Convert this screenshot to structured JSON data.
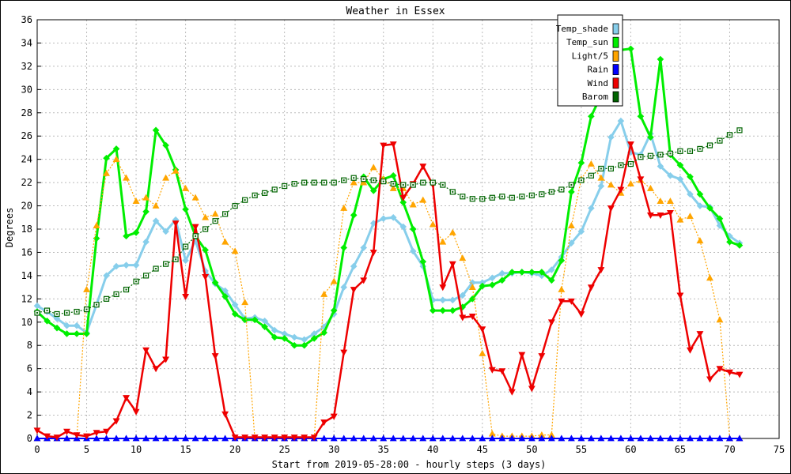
{
  "chart_data": {
    "type": "line",
    "title": "Weather in Essex",
    "xlabel": "Start from 2019-05-28:00 - hourly steps (3 days)",
    "ylabel": "Degrees",
    "xlim": [
      0,
      75
    ],
    "ylim": [
      0,
      36
    ],
    "xticks": [
      0,
      5,
      10,
      15,
      20,
      25,
      30,
      35,
      40,
      45,
      50,
      55,
      60,
      65,
      70,
      75
    ],
    "yticks": [
      0,
      2,
      4,
      6,
      8,
      10,
      12,
      14,
      16,
      18,
      20,
      22,
      24,
      26,
      28,
      30,
      32,
      34,
      36
    ],
    "grid": true,
    "legend_position": "top-right",
    "x": [
      0,
      1,
      2,
      3,
      4,
      5,
      6,
      7,
      8,
      9,
      10,
      11,
      12,
      13,
      14,
      15,
      16,
      17,
      18,
      19,
      20,
      21,
      22,
      23,
      24,
      25,
      26,
      27,
      28,
      29,
      30,
      31,
      32,
      33,
      34,
      35,
      36,
      37,
      38,
      39,
      40,
      41,
      42,
      43,
      44,
      45,
      46,
      47,
      48,
      49,
      50,
      51,
      52,
      53,
      54,
      55,
      56,
      57,
      58,
      59,
      60,
      61,
      62,
      63,
      64,
      65,
      66,
      67,
      68,
      69,
      70,
      71
    ],
    "series": [
      {
        "name": "Temp_shade",
        "color": "#87ceeb",
        "marker": "diamond",
        "values": [
          11.4,
          10.9,
          10.3,
          9.7,
          9.7,
          9.1,
          11.5,
          14.0,
          14.8,
          14.9,
          14.9,
          16.9,
          18.7,
          17.8,
          18.8,
          15.3,
          17.0,
          14.4,
          13.3,
          12.7,
          11.5,
          10.3,
          10.4,
          10.1,
          9.3,
          9.0,
          8.7,
          8.5,
          9.0,
          9.6,
          10.7,
          13.0,
          14.8,
          16.4,
          18.5,
          18.9,
          19.0,
          18.2,
          16.1,
          14.8,
          11.9,
          11.9,
          11.9,
          12.3,
          13.4,
          13.4,
          13.8,
          14.2,
          14.2,
          14.3,
          14.2,
          14.0,
          14.5,
          15.6,
          16.8,
          17.8,
          19.8,
          21.7,
          25.9,
          27.3,
          24.6,
          24.4,
          26.2,
          23.4,
          22.6,
          22.3,
          21.0,
          20.0,
          19.9,
          18.3,
          17.4,
          16.8
        ]
      },
      {
        "name": "Temp_sun",
        "color": "#00ee00",
        "marker": "diamond",
        "values": [
          10.9,
          10.1,
          9.5,
          9.0,
          9.0,
          9.0,
          17.2,
          24.1,
          24.9,
          17.4,
          17.7,
          19.5,
          26.5,
          25.2,
          23.1,
          19.7,
          17.4,
          16.2,
          13.4,
          12.2,
          10.7,
          10.2,
          10.2,
          9.6,
          8.7,
          8.6,
          8.0,
          8.0,
          8.6,
          9.1,
          11.0,
          16.4,
          19.2,
          22.5,
          21.3,
          22.3,
          22.6,
          20.3,
          18.0,
          15.2,
          11.0,
          11.0,
          11.0,
          11.3,
          12.0,
          13.1,
          13.2,
          13.6,
          14.3,
          14.3,
          14.3,
          14.3,
          13.6,
          15.3,
          21.2,
          23.7,
          27.7,
          29.5,
          31.4,
          33.4,
          33.5,
          27.7,
          25.9,
          32.6,
          24.4,
          23.5,
          22.5,
          21.0,
          19.8,
          18.9,
          16.9,
          16.6
        ]
      },
      {
        "name": "Light/5",
        "color": "#ffa500",
        "marker": "triangle-up",
        "values": [
          0,
          0,
          0,
          0,
          0,
          12.8,
          18.3,
          22.8,
          24.0,
          22.4,
          20.4,
          20.7,
          20.0,
          22.4,
          23.0,
          21.5,
          20.7,
          19.0,
          19.3,
          16.9,
          16.1,
          11.7,
          0,
          0,
          0,
          0,
          0,
          0,
          0,
          12.4,
          13.5,
          19.8,
          22.0,
          22.0,
          23.3,
          22.3,
          21.5,
          21.5,
          20.1,
          20.5,
          18.4,
          16.9,
          17.7,
          15.5,
          13.0,
          7.3,
          0.4,
          0.2,
          0.2,
          0.2,
          0.2,
          0.3,
          0.3,
          12.8,
          18.3,
          22.3,
          23.6,
          22.4,
          21.8,
          21.1,
          21.9,
          22.2,
          21.5,
          20.4,
          20.4,
          18.8,
          19.1,
          17.0,
          13.8,
          10.2,
          0,
          0
        ]
      },
      {
        "name": "Rain",
        "color": "#0000ff",
        "marker": "triangle-up",
        "values": [
          0,
          0,
          0,
          0,
          0,
          0,
          0,
          0,
          0,
          0,
          0,
          0,
          0,
          0,
          0,
          0,
          0,
          0,
          0,
          0,
          0,
          0,
          0,
          0,
          0,
          0,
          0,
          0,
          0,
          0,
          0,
          0,
          0,
          0,
          0,
          0,
          0,
          0,
          0,
          0,
          0,
          0,
          0,
          0,
          0,
          0,
          0,
          0,
          0,
          0,
          0,
          0,
          0,
          0,
          0,
          0,
          0,
          0,
          0,
          0,
          0,
          0,
          0,
          0,
          0,
          0,
          0,
          0,
          0,
          0,
          0,
          0
        ]
      },
      {
        "name": "Wind",
        "color": "#ee0000",
        "marker": "triangle-down",
        "values": [
          0.7,
          0.2,
          0.1,
          0.6,
          0.3,
          0.2,
          0.5,
          0.6,
          1.5,
          3.5,
          2.3,
          7.6,
          6.0,
          6.8,
          18.5,
          12.2,
          18.2,
          13.9,
          7.1,
          2.1,
          0.1,
          0.1,
          0.1,
          0.1,
          0.1,
          0.1,
          0.1,
          0.1,
          0.1,
          1.4,
          1.9,
          7.4,
          12.8,
          13.6,
          16.0,
          25.2,
          25.3,
          20.7,
          21.9,
          23.4,
          21.8,
          13.0,
          15.0,
          10.4,
          10.5,
          9.4,
          5.9,
          5.8,
          4.0,
          7.2,
          4.3,
          7.1,
          10.0,
          11.8,
          11.8,
          10.7,
          13.0,
          14.5,
          19.8,
          21.4,
          25.3,
          22.3,
          19.2,
          19.2,
          19.4,
          12.3,
          7.6,
          9.0,
          5.1,
          6.0,
          5.7,
          5.5
        ]
      },
      {
        "name": "Barom",
        "color": "#006400",
        "marker": "square",
        "values": [
          10.8,
          11.0,
          10.7,
          10.8,
          10.9,
          11.1,
          11.5,
          12.0,
          12.4,
          12.8,
          13.5,
          14.0,
          14.6,
          15.0,
          15.4,
          16.5,
          17.4,
          18.0,
          18.7,
          19.3,
          20.0,
          20.5,
          20.9,
          21.1,
          21.4,
          21.7,
          21.9,
          22.0,
          22.0,
          22.0,
          22.0,
          22.2,
          22.4,
          22.3,
          22.2,
          22.1,
          21.9,
          21.8,
          21.8,
          22.0,
          22.0,
          21.8,
          21.2,
          20.8,
          20.6,
          20.6,
          20.7,
          20.8,
          20.7,
          20.8,
          20.9,
          21.0,
          21.2,
          21.4,
          21.8,
          22.2,
          22.6,
          23.2,
          23.2,
          23.5,
          23.6,
          24.2,
          24.3,
          24.4,
          24.5,
          24.7,
          24.7,
          24.9,
          25.2,
          25.6,
          26.1,
          26.5
        ]
      }
    ]
  }
}
